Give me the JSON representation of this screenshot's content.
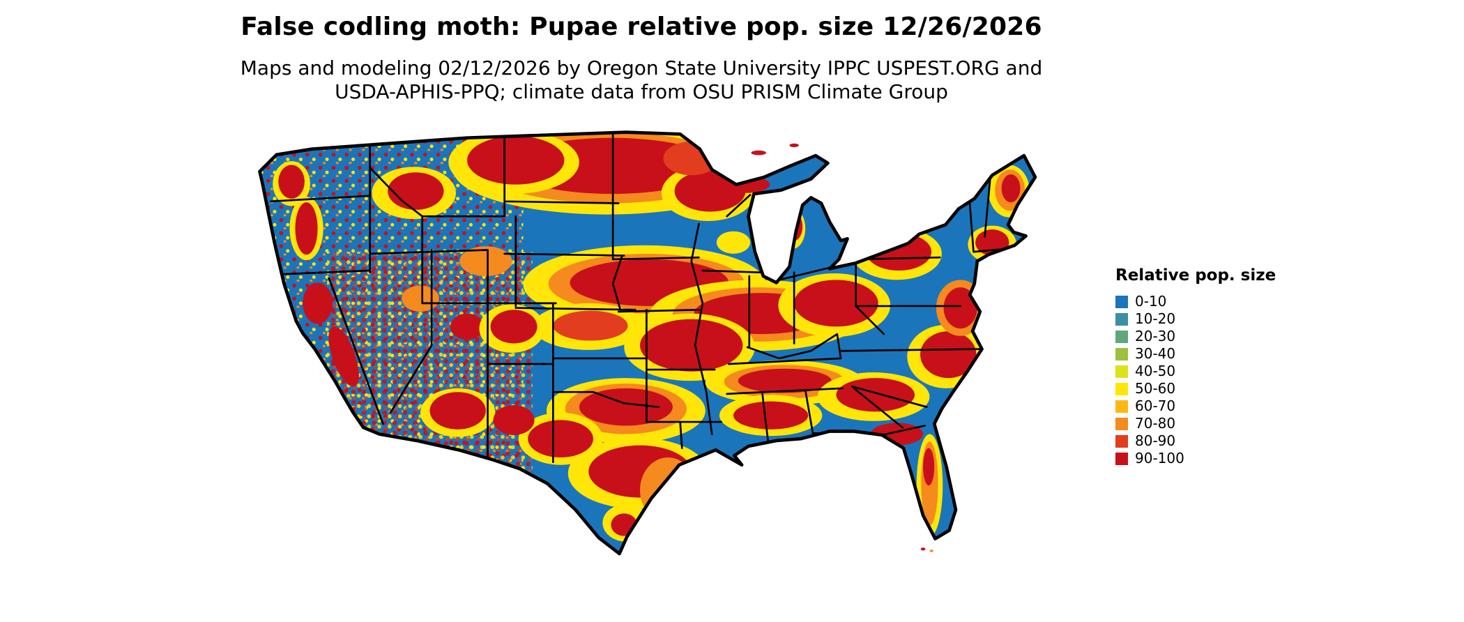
{
  "title": "False codling moth: Pupae relative pop. size 12/26/2026",
  "subtitle": {
    "line1": "Maps and modeling 02/12/2026 by Oregon State University IPPC USPEST.ORG and",
    "line2": "USDA-APHIS-PPQ; climate data from OSU PRISM Climate Group"
  },
  "map": {
    "region": "Contiguous United States",
    "kind": "relative population size heat map",
    "base_color": "#1B75BB",
    "border_color": "#000000"
  },
  "legend": {
    "title": "Relative pop. size",
    "items": [
      {
        "label": "0-10",
        "color": "#1B75BB"
      },
      {
        "label": "10-20",
        "color": "#3A8FA3"
      },
      {
        "label": "20-30",
        "color": "#5FA77D"
      },
      {
        "label": "30-40",
        "color": "#9DC13F"
      },
      {
        "label": "40-50",
        "color": "#DDE21B"
      },
      {
        "label": "50-60",
        "color": "#FFE608"
      },
      {
        "label": "60-70",
        "color": "#FDB813"
      },
      {
        "label": "70-80",
        "color": "#F58A1E"
      },
      {
        "label": "80-90",
        "color": "#E23D1F"
      },
      {
        "label": "90-100",
        "color": "#C8101B"
      }
    ]
  }
}
